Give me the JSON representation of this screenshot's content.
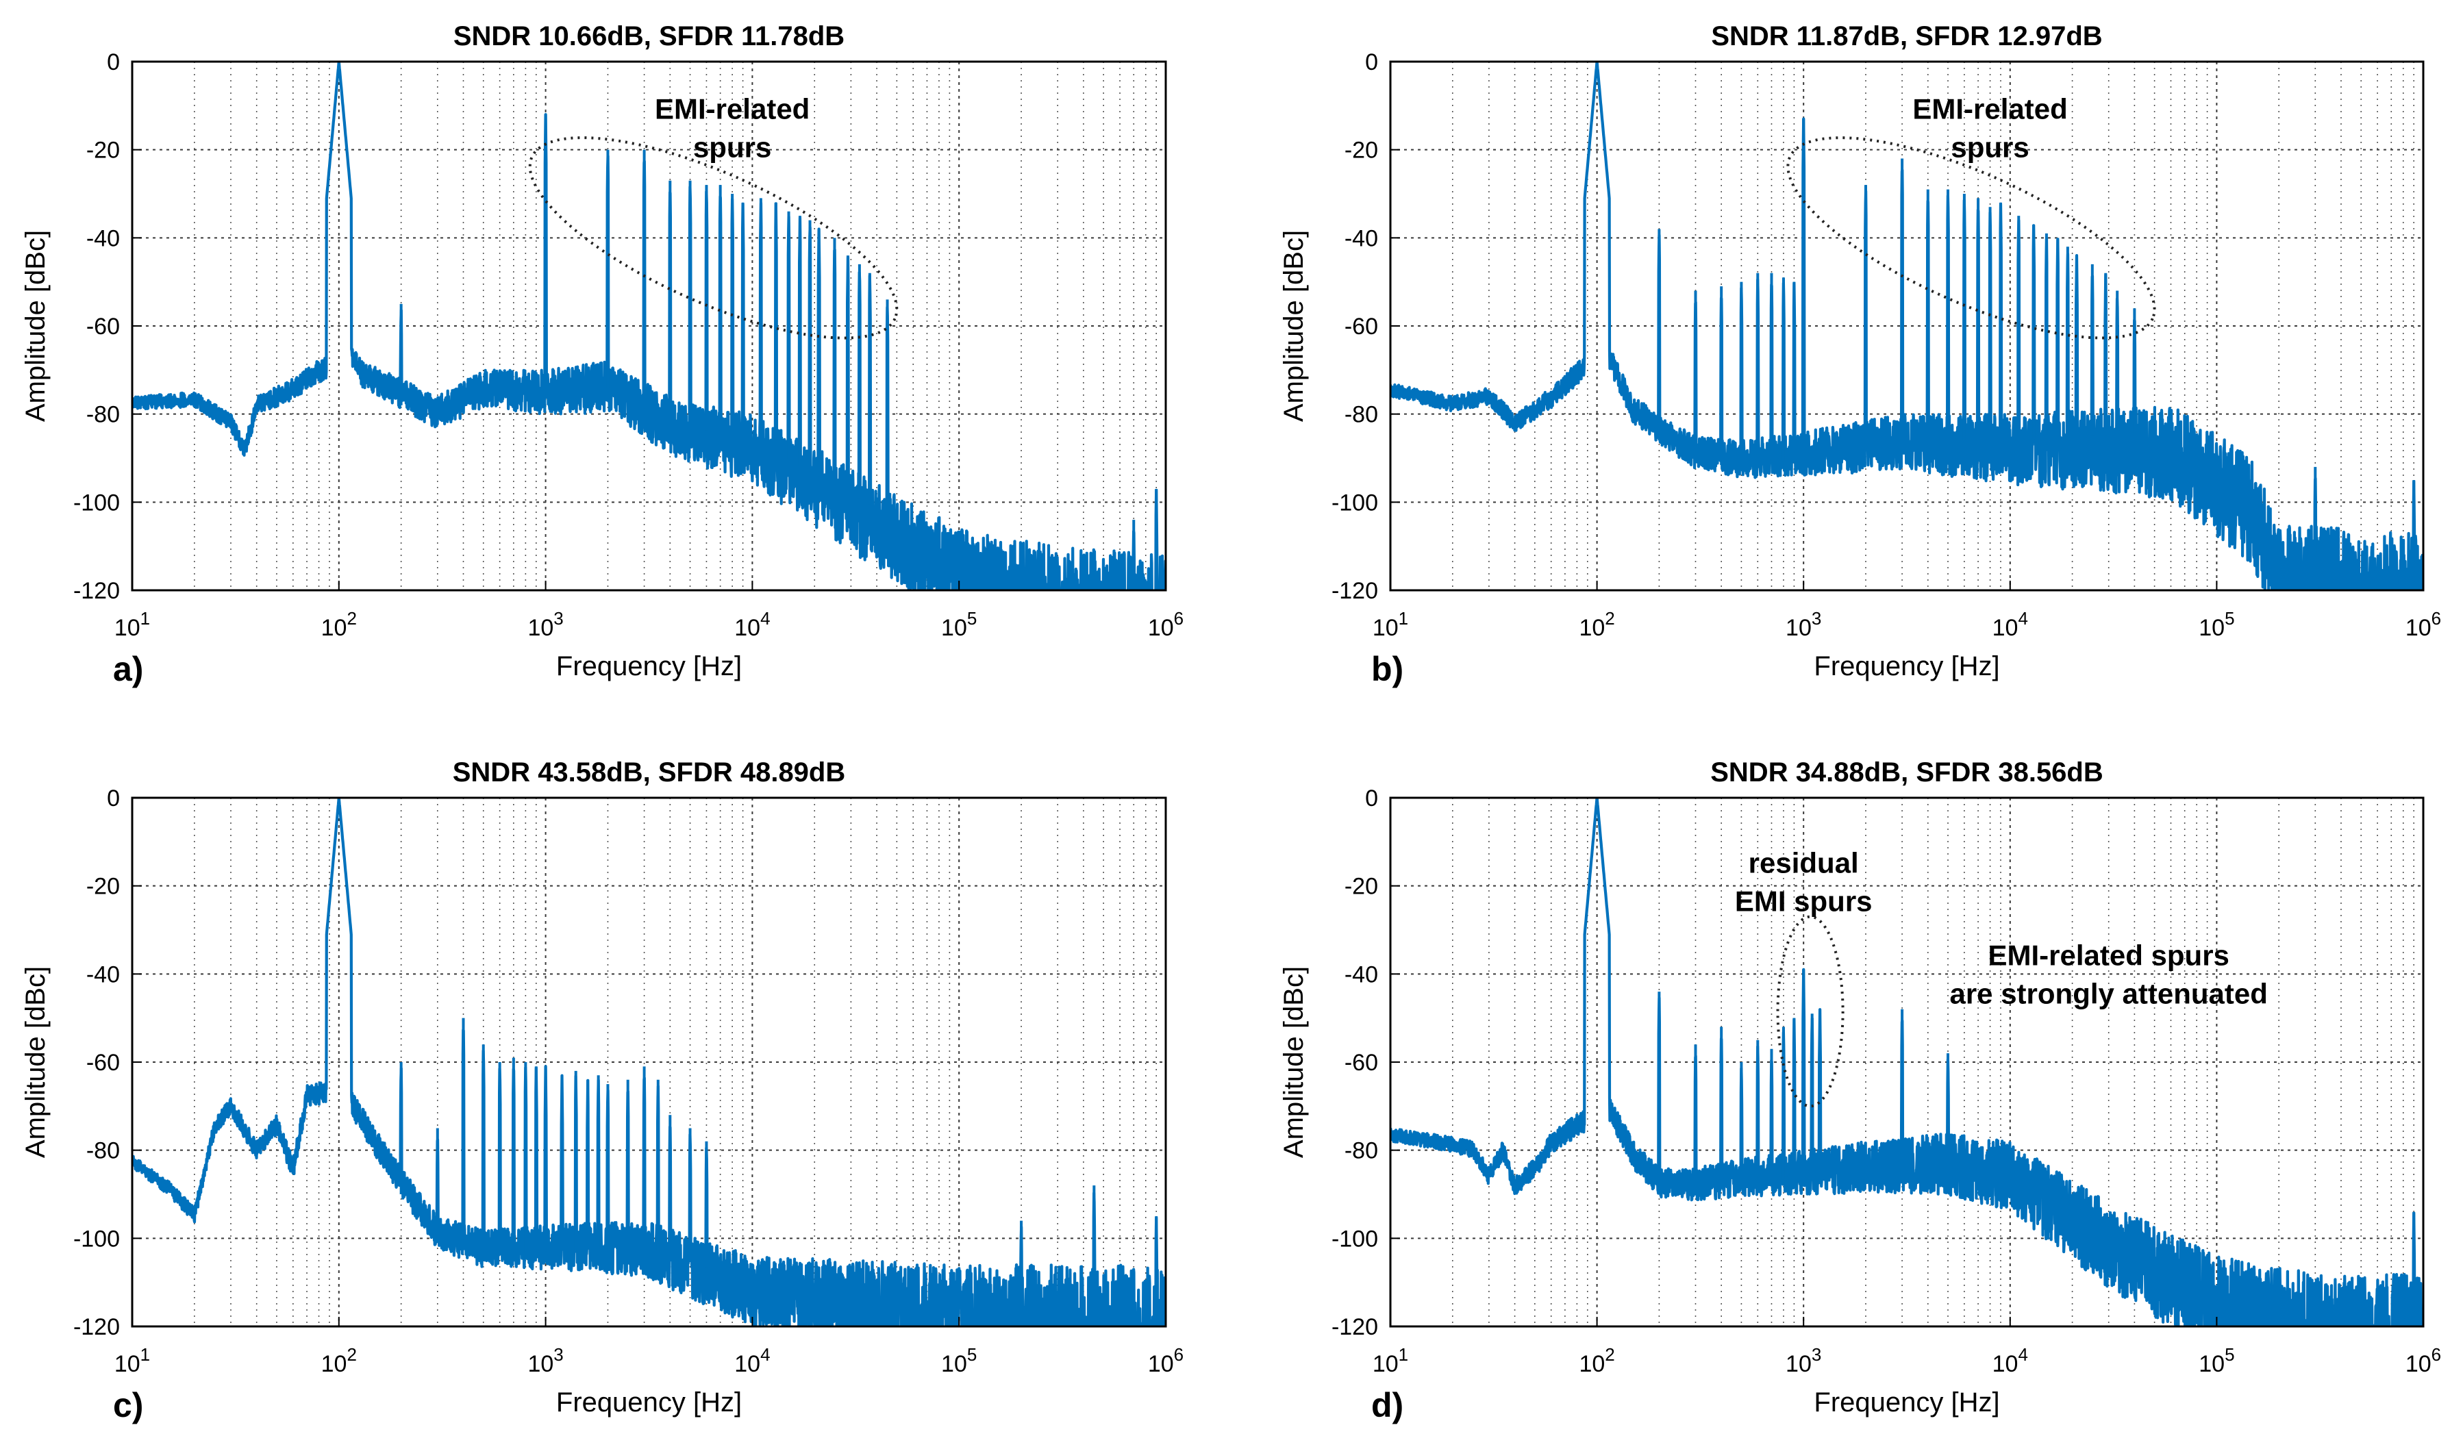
{
  "colors": {
    "line": "#0072BD",
    "axes": "#000000"
  },
  "chart_data": [
    {
      "type": "line",
      "panel": "a)",
      "title": "SNDR 10.66dB, SFDR 11.78dB",
      "xlabel": "Frequency [Hz]",
      "ylabel": "Amplitude [dBc]",
      "xscale": "log",
      "xlim": [
        10,
        1000000
      ],
      "ylim": [
        -120,
        0
      ],
      "xticks": [
        "10",
        "10",
        "10",
        "10",
        "10",
        "10"
      ],
      "xtick_exponents": [
        "1",
        "2",
        "3",
        "4",
        "5",
        "6"
      ],
      "yticks": [
        "0",
        "-20",
        "-40",
        "-60",
        "-80",
        "-100",
        "-120"
      ],
      "grid": true,
      "signal": {
        "freq": 100,
        "level": 0
      },
      "noise_floor": [
        [
          10,
          -76
        ],
        [
          20,
          -75
        ],
        [
          30,
          -80
        ],
        [
          35,
          -86
        ],
        [
          40,
          -76
        ],
        [
          60,
          -72
        ],
        [
          90,
          -66
        ],
        [
          100,
          -58
        ],
        [
          130,
          -68
        ],
        [
          200,
          -72
        ],
        [
          300,
          -76
        ],
        [
          500,
          -70
        ],
        [
          1000,
          -70
        ],
        [
          2000,
          -68
        ],
        [
          4000,
          -76
        ],
        [
          10000,
          -80
        ],
        [
          30000,
          -92
        ],
        [
          100000,
          -106
        ],
        [
          300000,
          -110
        ],
        [
          1000000,
          -112
        ]
      ],
      "spurs": [
        {
          "freq": 200,
          "level": -55
        },
        {
          "freq": 1000,
          "level": -12
        },
        {
          "freq": 2000,
          "level": -20
        },
        {
          "freq": 3000,
          "level": -20
        },
        {
          "freq": 4000,
          "level": -27
        },
        {
          "freq": 5000,
          "level": -27
        },
        {
          "freq": 6000,
          "level": -28
        },
        {
          "freq": 7000,
          "level": -28
        },
        {
          "freq": 8000,
          "level": -30
        },
        {
          "freq": 9000,
          "level": -32
        },
        {
          "freq": 11000,
          "level": -31
        },
        {
          "freq": 13000,
          "level": -32
        },
        {
          "freq": 15000,
          "level": -34
        },
        {
          "freq": 17000,
          "level": -35
        },
        {
          "freq": 19000,
          "level": -36
        },
        {
          "freq": 21000,
          "level": -38
        },
        {
          "freq": 25000,
          "level": -40
        },
        {
          "freq": 29000,
          "level": -44
        },
        {
          "freq": 33000,
          "level": -46
        },
        {
          "freq": 37000,
          "level": -48
        },
        {
          "freq": 45000,
          "level": -54
        },
        {
          "freq": 700000,
          "level": -104
        },
        {
          "freq": 900000,
          "level": -97
        }
      ],
      "annotations": [
        {
          "text": [
            "EMI-related",
            "spurs"
          ],
          "x": 8000,
          "y": -13
        }
      ],
      "ellipse": {
        "freq_range": [
          600,
          70000
        ],
        "level_range": [
          -75,
          -5
        ],
        "tilt_deg": 24
      }
    },
    {
      "type": "line",
      "panel": "b)",
      "title": "SNDR 11.87dB, SFDR 12.97dB",
      "xlabel": "Frequency [Hz]",
      "ylabel": "Amplitude [dBc]",
      "xscale": "log",
      "xlim": [
        10,
        1000000
      ],
      "ylim": [
        -120,
        0
      ],
      "xticks": [
        "10",
        "10",
        "10",
        "10",
        "10",
        "10"
      ],
      "xtick_exponents": [
        "1",
        "2",
        "3",
        "4",
        "5",
        "6"
      ],
      "yticks": [
        "0",
        "-20",
        "-40",
        "-60",
        "-80",
        "-100",
        "-120"
      ],
      "grid": true,
      "signal": {
        "freq": 100,
        "level": 0
      },
      "noise_floor": [
        [
          10,
          -73
        ],
        [
          20,
          -76
        ],
        [
          30,
          -74
        ],
        [
          40,
          -80
        ],
        [
          60,
          -74
        ],
        [
          90,
          -66
        ],
        [
          100,
          -58
        ],
        [
          150,
          -76
        ],
        [
          200,
          -80
        ],
        [
          300,
          -85
        ],
        [
          500,
          -86
        ],
        [
          1000,
          -84
        ],
        [
          3000,
          -80
        ],
        [
          10000,
          -80
        ],
        [
          60000,
          -78
        ],
        [
          150000,
          -90
        ],
        [
          200000,
          -105
        ],
        [
          1000000,
          -107
        ]
      ],
      "spurs": [
        {
          "freq": 200,
          "level": -38
        },
        {
          "freq": 300,
          "level": -52
        },
        {
          "freq": 400,
          "level": -51
        },
        {
          "freq": 500,
          "level": -50
        },
        {
          "freq": 600,
          "level": -48
        },
        {
          "freq": 700,
          "level": -48
        },
        {
          "freq": 800,
          "level": -49
        },
        {
          "freq": 900,
          "level": -50
        },
        {
          "freq": 1000,
          "level": -13
        },
        {
          "freq": 2000,
          "level": -28
        },
        {
          "freq": 3000,
          "level": -22
        },
        {
          "freq": 4000,
          "level": -29
        },
        {
          "freq": 5000,
          "level": -29
        },
        {
          "freq": 6000,
          "level": -30
        },
        {
          "freq": 7000,
          "level": -31
        },
        {
          "freq": 8000,
          "level": -33
        },
        {
          "freq": 9000,
          "level": -32
        },
        {
          "freq": 11000,
          "level": -35
        },
        {
          "freq": 13000,
          "level": -37
        },
        {
          "freq": 15000,
          "level": -39
        },
        {
          "freq": 17000,
          "level": -40
        },
        {
          "freq": 19000,
          "level": -42
        },
        {
          "freq": 21000,
          "level": -44
        },
        {
          "freq": 25000,
          "level": -46
        },
        {
          "freq": 29000,
          "level": -48
        },
        {
          "freq": 33000,
          "level": -52
        },
        {
          "freq": 40000,
          "level": -56
        },
        {
          "freq": 300000,
          "level": -92
        },
        {
          "freq": 900000,
          "level": -95
        }
      ],
      "annotations": [
        {
          "text": [
            "EMI-related",
            "spurs"
          ],
          "x": 8000,
          "y": -13
        }
      ],
      "ellipse": {
        "freq_range": [
          600,
          70000
        ],
        "level_range": [
          -75,
          -5
        ],
        "tilt_deg": 24
      }
    },
    {
      "type": "line",
      "panel": "c)",
      "title": "SNDR 43.58dB, SFDR 48.89dB",
      "xlabel": "Frequency [Hz]",
      "ylabel": "Amplitude [dBc]",
      "xscale": "log",
      "xlim": [
        10,
        1000000
      ],
      "ylim": [
        -120,
        0
      ],
      "xticks": [
        "10",
        "10",
        "10",
        "10",
        "10",
        "10"
      ],
      "xtick_exponents": [
        "1",
        "2",
        "3",
        "4",
        "5",
        "6"
      ],
      "yticks": [
        "0",
        "-20",
        "-40",
        "-60",
        "-80",
        "-100",
        "-120"
      ],
      "grid": true,
      "signal": {
        "freq": 100,
        "level": 0
      },
      "noise_floor": [
        [
          10,
          -81
        ],
        [
          15,
          -87
        ],
        [
          20,
          -93
        ],
        [
          25,
          -73
        ],
        [
          30,
          -68
        ],
        [
          40,
          -78
        ],
        [
          50,
          -72
        ],
        [
          60,
          -82
        ],
        [
          70,
          -65
        ],
        [
          90,
          -64
        ],
        [
          100,
          -62
        ],
        [
          150,
          -75
        ],
        [
          200,
          -84
        ],
        [
          300,
          -95
        ],
        [
          500,
          -98
        ],
        [
          1000,
          -97
        ],
        [
          3000,
          -96
        ],
        [
          10000,
          -104
        ],
        [
          100000,
          -106
        ],
        [
          1000000,
          -106
        ]
      ],
      "spurs": [
        {
          "freq": 200,
          "level": -60
        },
        {
          "freq": 300,
          "level": -75
        },
        {
          "freq": 400,
          "level": -50
        },
        {
          "freq": 500,
          "level": -56
        },
        {
          "freq": 600,
          "level": -60
        },
        {
          "freq": 700,
          "level": -59
        },
        {
          "freq": 800,
          "level": -60
        },
        {
          "freq": 900,
          "level": -61
        },
        {
          "freq": 1000,
          "level": -61
        },
        {
          "freq": 1200,
          "level": -63
        },
        {
          "freq": 1400,
          "level": -62
        },
        {
          "freq": 1600,
          "level": -64
        },
        {
          "freq": 1800,
          "level": -63
        },
        {
          "freq": 2000,
          "level": -65
        },
        {
          "freq": 2500,
          "level": -64
        },
        {
          "freq": 3000,
          "level": -61
        },
        {
          "freq": 3500,
          "level": -64
        },
        {
          "freq": 4000,
          "level": -72
        },
        {
          "freq": 5000,
          "level": -75
        },
        {
          "freq": 6000,
          "level": -78
        },
        {
          "freq": 200000,
          "level": -96
        },
        {
          "freq": 450000,
          "level": -88
        },
        {
          "freq": 900000,
          "level": -95
        }
      ],
      "annotations": [],
      "ellipse": null
    },
    {
      "type": "line",
      "panel": "d)",
      "title": "SNDR 34.88dB, SFDR 38.56dB",
      "xlabel": "Frequency [Hz]",
      "ylabel": "Amplitude [dBc]",
      "xscale": "log",
      "xlim": [
        10,
        1000000
      ],
      "ylim": [
        -120,
        0
      ],
      "xticks": [
        "10",
        "10",
        "10",
        "10",
        "10",
        "10"
      ],
      "xtick_exponents": [
        "1",
        "2",
        "3",
        "4",
        "5",
        "6"
      ],
      "yticks": [
        "0",
        "-20",
        "-40",
        "-60",
        "-80",
        "-100",
        "-120"
      ],
      "grid": true,
      "signal": {
        "freq": 100,
        "level": 0
      },
      "noise_floor": [
        [
          10,
          -75
        ],
        [
          20,
          -77
        ],
        [
          25,
          -78
        ],
        [
          30,
          -84
        ],
        [
          35,
          -78
        ],
        [
          40,
          -86
        ],
        [
          50,
          -82
        ],
        [
          60,
          -76
        ],
        [
          90,
          -70
        ],
        [
          100,
          -62
        ],
        [
          150,
          -78
        ],
        [
          200,
          -84
        ],
        [
          300,
          -84
        ],
        [
          500,
          -82
        ],
        [
          1000,
          -80
        ],
        [
          2000,
          -78
        ],
        [
          5000,
          -76
        ],
        [
          10000,
          -78
        ],
        [
          30000,
          -92
        ],
        [
          100000,
          -104
        ],
        [
          300000,
          -108
        ],
        [
          1000000,
          -108
        ]
      ],
      "spurs": [
        {
          "freq": 200,
          "level": -44
        },
        {
          "freq": 300,
          "level": -56
        },
        {
          "freq": 400,
          "level": -52
        },
        {
          "freq": 500,
          "level": -60
        },
        {
          "freq": 600,
          "level": -55
        },
        {
          "freq": 700,
          "level": -57
        },
        {
          "freq": 800,
          "level": -52
        },
        {
          "freq": 900,
          "level": -50
        },
        {
          "freq": 1000,
          "level": -39
        },
        {
          "freq": 1100,
          "level": -49
        },
        {
          "freq": 1200,
          "level": -48
        },
        {
          "freq": 3000,
          "level": -48
        },
        {
          "freq": 5000,
          "level": -58
        },
        {
          "freq": 900000,
          "level": -94
        }
      ],
      "annotations": [
        {
          "text": [
            "residual",
            "EMI spurs"
          ],
          "x": 1000,
          "y": -17
        },
        {
          "text": [
            "EMI-related spurs",
            "are strongly attenuated"
          ],
          "x": 30000,
          "y": -38
        }
      ],
      "ellipse": {
        "freq_range": [
          750,
          1550
        ],
        "level_range": [
          -70,
          -27
        ],
        "tilt_deg": 0
      }
    }
  ]
}
